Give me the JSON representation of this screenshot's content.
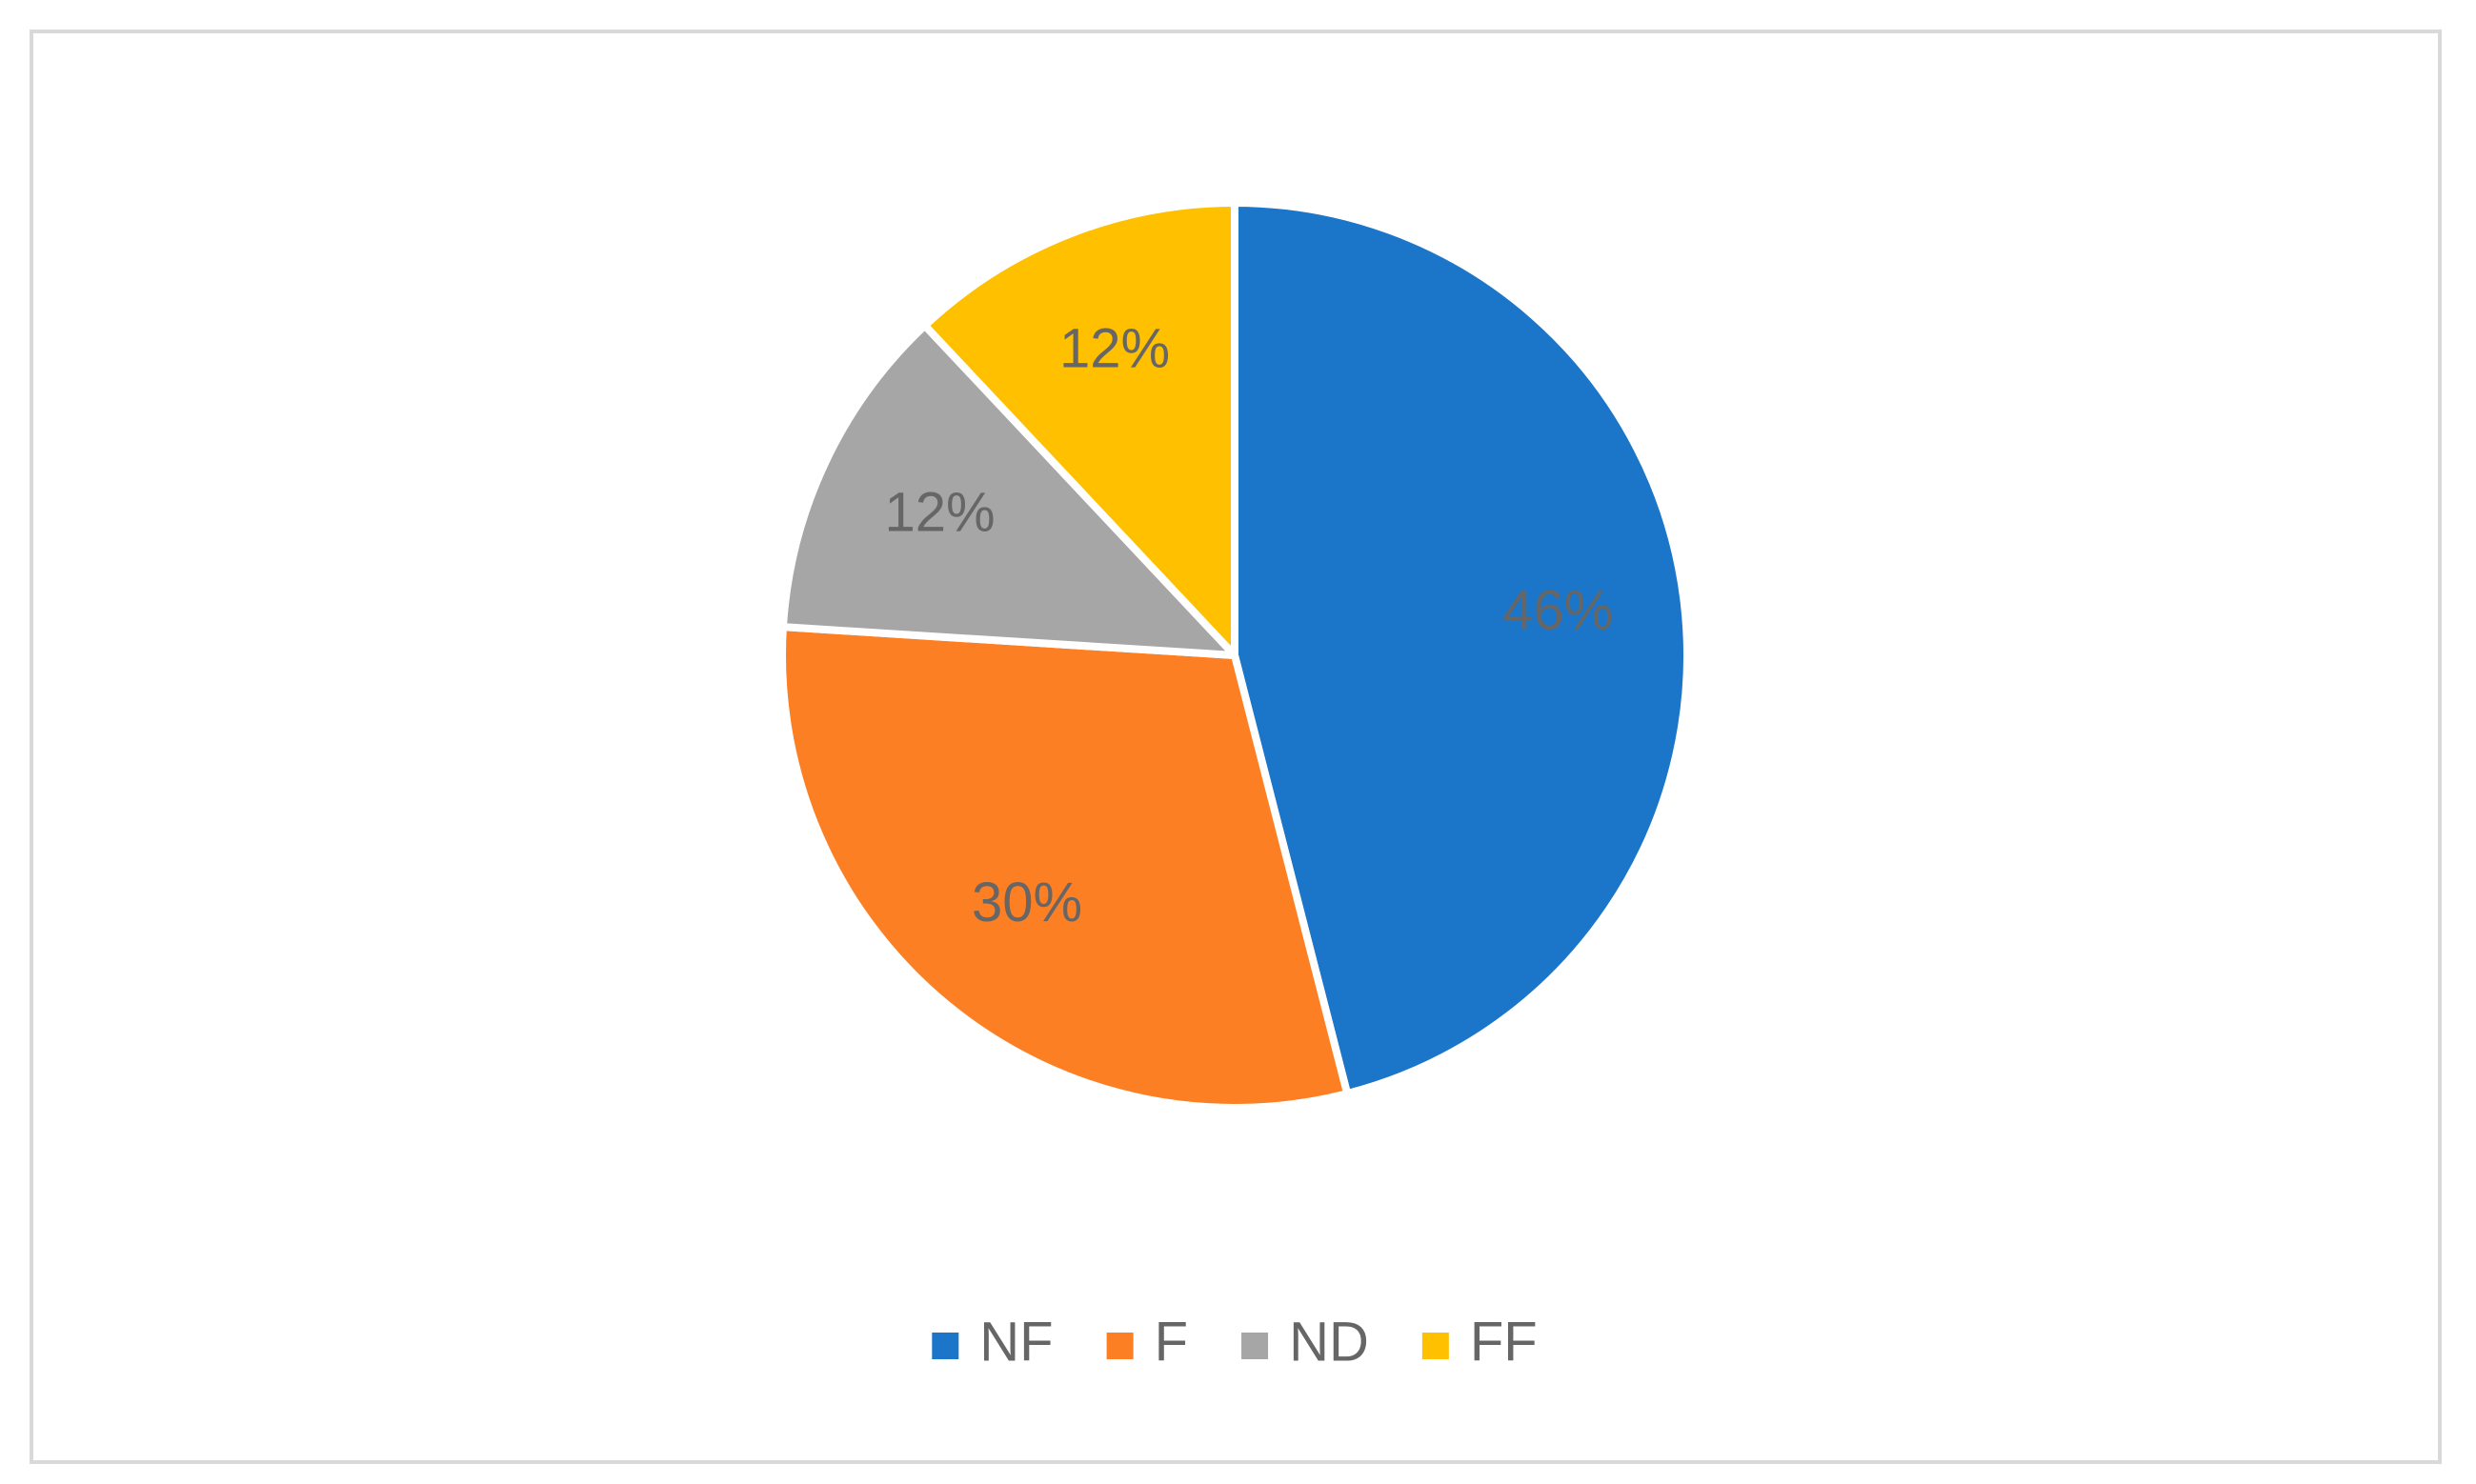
{
  "chart_data": {
    "type": "pie",
    "categories": [
      "NF",
      "F",
      "ND",
      "FF"
    ],
    "values": [
      46,
      30,
      12,
      12
    ],
    "value_labels": [
      "46%",
      "30%",
      "12%",
      "12%"
    ],
    "colors": [
      "#1b75c9",
      "#fd7f24",
      "#a6a6a6",
      "#ffc000"
    ],
    "legend": "bottom"
  }
}
